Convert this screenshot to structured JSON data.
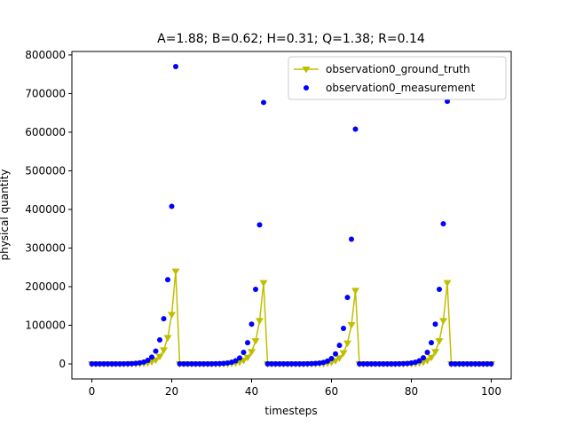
{
  "chart_data": {
    "type": "line",
    "title": "A=1.88; B=0.62; H=0.31; Q=1.38; R=0.14",
    "x_label": "timesteps",
    "y_label": "physical quantity",
    "xlim": [
      -5,
      105
    ],
    "ylim": [
      -39000,
      809000
    ],
    "xticks": [
      0,
      20,
      40,
      60,
      80,
      100
    ],
    "yticks": [
      0,
      100000,
      200000,
      300000,
      400000,
      500000,
      600000,
      700000,
      800000
    ],
    "legend": "upper right",
    "x": [
      0,
      1,
      2,
      3,
      4,
      5,
      6,
      7,
      8,
      9,
      10,
      11,
      12,
      13,
      14,
      15,
      16,
      17,
      18,
      19,
      20,
      21,
      22,
      23,
      24,
      25,
      26,
      27,
      28,
      29,
      30,
      31,
      32,
      33,
      34,
      35,
      36,
      37,
      38,
      39,
      40,
      41,
      42,
      43,
      44,
      45,
      46,
      47,
      48,
      49,
      50,
      51,
      52,
      53,
      54,
      55,
      56,
      57,
      58,
      59,
      60,
      61,
      62,
      63,
      64,
      65,
      66,
      67,
      68,
      69,
      70,
      71,
      72,
      73,
      74,
      75,
      76,
      77,
      78,
      79,
      80,
      81,
      82,
      83,
      84,
      85,
      86,
      87,
      88,
      89,
      90,
      91,
      92,
      93,
      94,
      95,
      96,
      97,
      98,
      99,
      100
    ],
    "series": [
      {
        "name": "observation0_ground_truth",
        "type": "line",
        "color": "#bfbf00",
        "values": [
          0,
          1,
          2,
          3,
          5,
          10,
          19,
          35,
          66,
          120,
          230,
          440,
          820,
          1500,
          2900,
          5400,
          10200,
          19200,
          36100,
          67900,
          127700,
          240000,
          0,
          1,
          1,
          2,
          5,
          9,
          16,
          31,
          57,
          108,
          203,
          381,
          716,
          1350,
          2530,
          4750,
          8940,
          16800,
          31600,
          59400,
          111700,
          210000,
          0,
          0,
          1,
          1,
          2,
          4,
          8,
          15,
          28,
          52,
          97,
          183,
          345,
          648,
          1220,
          2290,
          4300,
          8090,
          15200,
          28600,
          53800,
          101100,
          190000,
          0,
          0,
          1,
          1,
          2,
          5,
          9,
          16,
          31,
          57,
          108,
          203,
          381,
          716,
          1350,
          2530,
          4750,
          8940,
          16800,
          31600,
          59400,
          111700,
          210000,
          0,
          0,
          0,
          0,
          0,
          0,
          0,
          0,
          0,
          0,
          0
        ]
      },
      {
        "name": "observation0_measurement",
        "type": "scatter",
        "color": "#0000ff",
        "values": [
          0,
          2,
          5,
          10,
          16,
          30,
          60,
          110,
          210,
          380,
          740,
          1400,
          2600,
          4800,
          9300,
          17500,
          33000,
          62000,
          117000,
          218000,
          408000,
          770000,
          3,
          1,
          4,
          7,
          15,
          28,
          52,
          99,
          180,
          345,
          650,
          1220,
          2290,
          4300,
          8100,
          15200,
          30000,
          55000,
          103000,
          193000,
          360000,
          677000,
          2,
          1,
          3,
          4,
          7,
          13,
          25,
          48,
          90,
          165,
          310,
          590,
          1100,
          2070,
          3900,
          7300,
          13800,
          26000,
          48000,
          92000,
          172000,
          323000,
          608000,
          1,
          2,
          3,
          4,
          7,
          15,
          28,
          52,
          99,
          180,
          345,
          650,
          1220,
          2290,
          4300,
          8100,
          16000,
          30000,
          55000,
          103000,
          193000,
          363000,
          680000,
          1,
          2,
          0,
          3,
          1,
          2,
          1,
          0,
          2,
          1,
          3
        ]
      }
    ]
  }
}
